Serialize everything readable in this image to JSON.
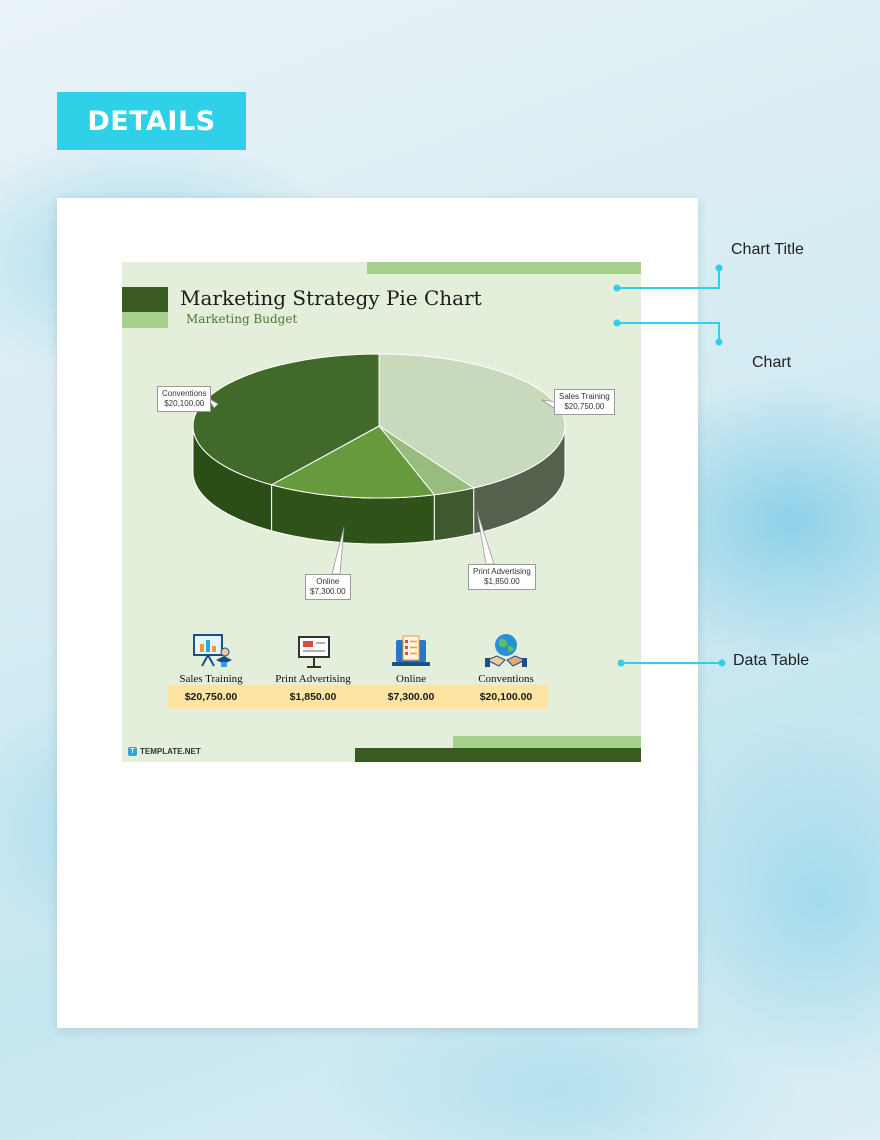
{
  "badge": {
    "label": "DETAILS"
  },
  "annotations": {
    "chart_title": "Chart Title",
    "chart": "Chart",
    "data_table": "Data Table"
  },
  "chart_data": {
    "type": "pie",
    "title": "Marketing Strategy Pie Chart",
    "subtitle": "Marketing Budget",
    "currency": "$",
    "slices": [
      {
        "name": "Sales Training",
        "value": 20750.0,
        "label": "$20,750.00",
        "color": "#c8dabb",
        "side": "#55604d"
      },
      {
        "name": "Print Advertising",
        "value": 1850.0,
        "label": "$1,850.00",
        "color": "#97bc7d",
        "side": "#3f5a2e"
      },
      {
        "name": "Online",
        "value": 7300.0,
        "label": "$7,300.00",
        "color": "#659a3d",
        "side": "#2f5218"
      },
      {
        "name": "Conventions",
        "value": 20100.0,
        "label": "$20,100.00",
        "color": "#40692a",
        "side": "#2b4d16"
      }
    ],
    "data_table": [
      {
        "name": "Sales Training",
        "value": "$20,750.00",
        "icon": "presentation-board-icon"
      },
      {
        "name": "Print Advertising",
        "value": "$1,850.00",
        "icon": "billboard-ad-icon"
      },
      {
        "name": "Online",
        "value": "$7,300.00",
        "icon": "laptop-list-icon"
      },
      {
        "name": "Conventions",
        "value": "$20,100.00",
        "icon": "globe-handshake-icon"
      }
    ]
  },
  "brand": {
    "name": "TEMPLATE.NET",
    "logo_letter": "T"
  },
  "colors": {
    "accent": "#2fd0e8",
    "chart_bg": "#e3eedb",
    "dark_green": "#3a5a24",
    "light_green": "#a8d08d",
    "value_bar": "#fde4a3"
  }
}
